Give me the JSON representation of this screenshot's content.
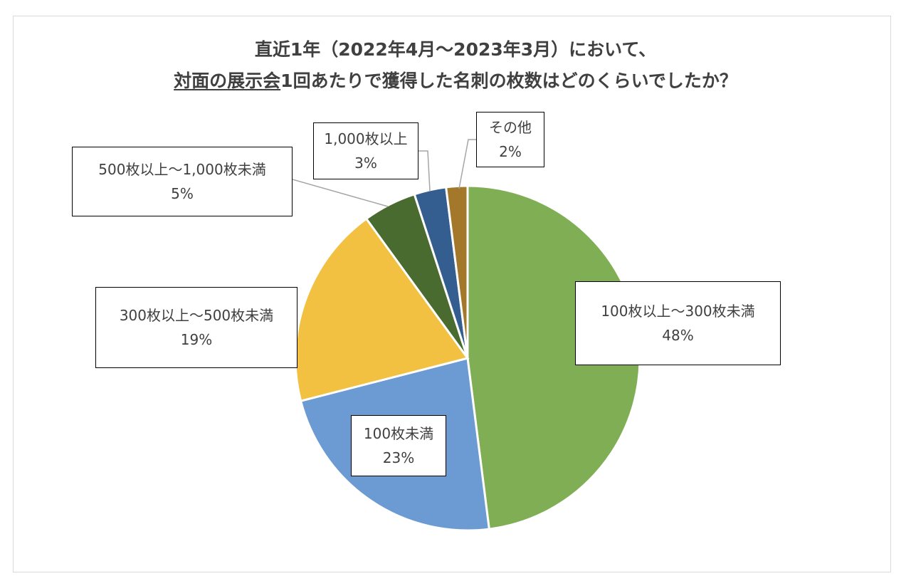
{
  "chart_data": {
    "type": "pie",
    "title_line1": "直近1年（2022年4月～2023年3月）において、",
    "title_line2_underlined": "対面の展示会",
    "title_line2_rest": "1回あたりで獲得した名刺の枚数はどのくらいでしたか？",
    "slices": [
      {
        "label": "100枚以上～300枚未満",
        "value": 48,
        "value_text": "48%",
        "color": "#7fae54"
      },
      {
        "label": "100枚未満",
        "value": 23,
        "value_text": "23%",
        "color": "#6b9bd2"
      },
      {
        "label": "300枚以上～500枚未満",
        "value": 19,
        "value_text": "19%",
        "color": "#f2c141"
      },
      {
        "label": "500枚以上～1,000枚未満",
        "value": 5,
        "value_text": "5%",
        "color": "#4a6b30"
      },
      {
        "label": "1,000枚以上",
        "value": 3,
        "value_text": "3%",
        "color": "#355e90"
      },
      {
        "label": "その他",
        "value": 2,
        "value_text": "2%",
        "color": "#a3782a"
      }
    ],
    "start_angle_deg": 0,
    "direction": "clockwise"
  }
}
